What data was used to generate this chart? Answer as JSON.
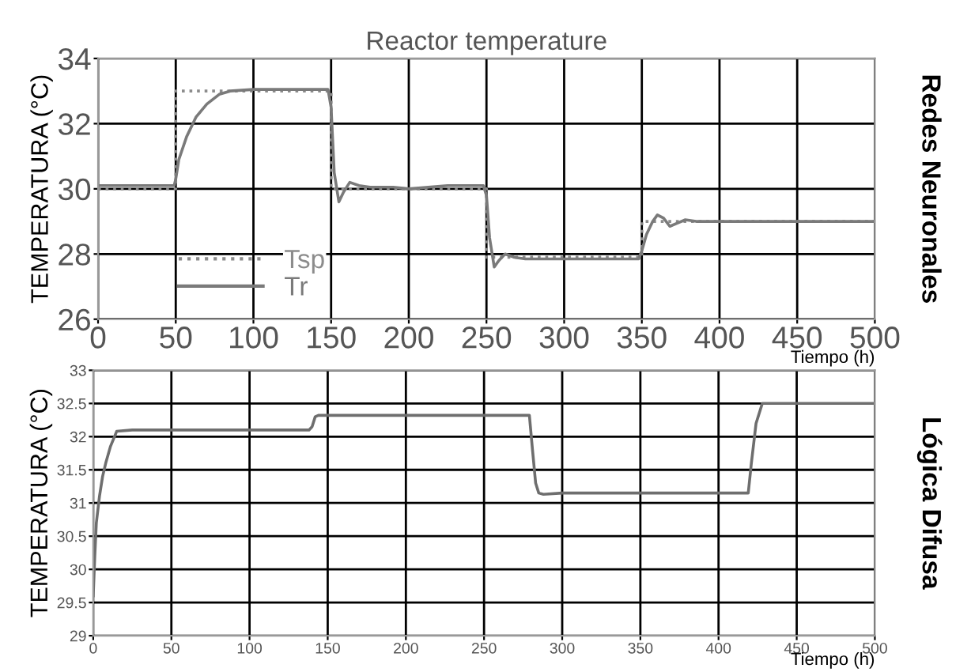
{
  "chart_data": [
    {
      "type": "line",
      "title": "Reactor temperature",
      "xlabel": "Tiempo (h)",
      "ylabel": "TEMPERATURA (°C)",
      "annotations": [
        "Redes Neuronales"
      ],
      "xlim": [
        0,
        500
      ],
      "xticks": [
        0,
        50,
        100,
        150,
        200,
        250,
        300,
        350,
        400,
        450,
        500
      ],
      "ylim": [
        26,
        34
      ],
      "yticks": [
        26,
        28,
        30,
        32,
        34
      ],
      "grid": true,
      "legend": "bottom left",
      "series": [
        {
          "name": "Tsp",
          "color": "#8c8c8c",
          "line_style": "dotted",
          "x": [
            0,
            50,
            50,
            150,
            150,
            250,
            250,
            350,
            350,
            500
          ],
          "values": [
            30,
            30,
            33,
            33,
            30,
            30,
            27.9,
            27.9,
            29,
            29
          ]
        },
        {
          "name": "Tr",
          "color": "#7a7a7a",
          "line_style": "solid",
          "x": [
            0,
            49,
            50,
            52,
            57,
            63,
            70,
            78,
            85,
            100,
            148,
            150,
            152,
            155,
            158,
            162,
            168,
            175,
            190,
            200,
            225,
            248,
            250,
            252,
            255,
            258,
            262,
            268,
            275,
            300,
            348,
            350,
            353,
            357,
            360,
            364,
            368,
            373,
            378,
            385,
            400,
            500
          ],
          "values": [
            30.1,
            30.1,
            30.3,
            30.9,
            31.6,
            32.2,
            32.6,
            32.9,
            33.0,
            33.05,
            33.05,
            32.5,
            30.5,
            29.6,
            29.9,
            30.2,
            30.1,
            30.05,
            30.05,
            30,
            30.1,
            30.1,
            29.8,
            28.5,
            27.6,
            27.8,
            28.0,
            27.9,
            27.85,
            27.85,
            27.85,
            28.1,
            28.6,
            29.0,
            29.2,
            29.1,
            28.85,
            28.95,
            29.05,
            29.0,
            29.0,
            29.0
          ]
        }
      ]
    },
    {
      "type": "line",
      "xlabel": "Tiempo (h)",
      "ylabel": "TEMPERATURA (°C)",
      "annotations": [
        "Lógica Difusa"
      ],
      "xlim": [
        0,
        500
      ],
      "xticks": [
        0,
        50,
        100,
        150,
        200,
        250,
        300,
        350,
        400,
        450,
        500
      ],
      "ylim": [
        29,
        33
      ],
      "yticks": [
        29,
        29.5,
        30,
        30.5,
        31,
        31.5,
        32,
        32.5,
        33
      ],
      "grid": true,
      "series": [
        {
          "color": "#6e6e6e",
          "line_style": "solid",
          "x": [
            0,
            1,
            2,
            4,
            6,
            8,
            11,
            15,
            25,
            138,
            140,
            142,
            144,
            279,
            281,
            283,
            285,
            288,
            300,
            419,
            421,
            424,
            428,
            500
          ],
          "values": [
            29.6,
            30.2,
            30.7,
            31.1,
            31.4,
            31.6,
            31.85,
            32.08,
            32.1,
            32.1,
            32.15,
            32.3,
            32.32,
            32.32,
            31.8,
            31.3,
            31.15,
            31.13,
            31.15,
            31.15,
            31.6,
            32.2,
            32.5,
            32.5
          ]
        }
      ]
    }
  ]
}
